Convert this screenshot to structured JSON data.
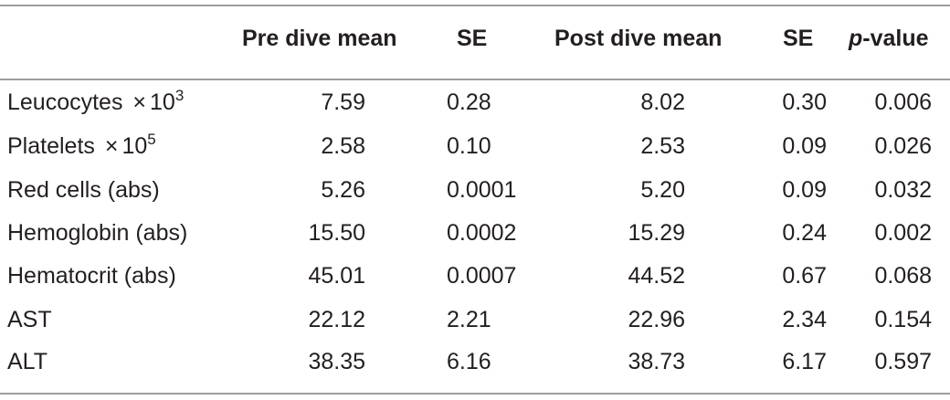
{
  "table": {
    "headers": {
      "variable": "",
      "pre_mean": "Pre dive mean",
      "pre_se": "SE",
      "post_mean": "Post dive mean",
      "post_se": "SE",
      "p_italic": "p",
      "p_rest": "-value"
    },
    "rows": [
      {
        "label": "Leucocytes",
        "times": "×",
        "base": "10",
        "exp": "3",
        "pre_mean": "7.59",
        "pre_se": "0.28",
        "post_mean": "8.02",
        "post_se": "0.30",
        "p": "0.006"
      },
      {
        "label": "Platelets",
        "times": "×",
        "base": "10",
        "exp": "5",
        "pre_mean": "2.58",
        "pre_se": "0.10",
        "post_mean": "2.53",
        "post_se": "0.09",
        "p": "0.026"
      },
      {
        "label": "Red cells (abs)",
        "pre_mean": "5.26",
        "pre_se": "0.0001",
        "post_mean": "5.20",
        "post_se": "0.09",
        "p": "0.032"
      },
      {
        "label": "Hemoglobin (abs)",
        "pre_mean": "15.50",
        "pre_se": "0.0002",
        "post_mean": "15.29",
        "post_se": "0.24",
        "p": "0.002"
      },
      {
        "label": "Hematocrit (abs)",
        "pre_mean": "45.01",
        "pre_se": "0.0007",
        "post_mean": "44.52",
        "post_se": "0.67",
        "p": "0.068"
      },
      {
        "label": "AST",
        "pre_mean": "22.12",
        "pre_se": "2.21",
        "post_mean": "22.96",
        "post_se": "2.34",
        "p": "0.154"
      },
      {
        "label": "ALT",
        "pre_mean": "38.35",
        "pre_se": "6.16",
        "post_mean": "38.73",
        "post_se": "6.17",
        "p": "0.597"
      }
    ]
  }
}
